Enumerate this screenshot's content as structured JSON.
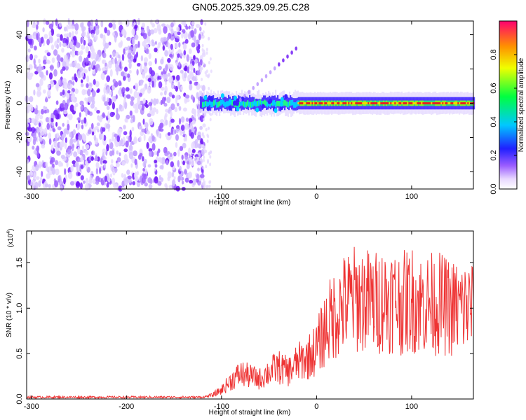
{
  "title": "GN05.2025.329.09.25.C28",
  "chart_data": [
    {
      "type": "heatmap",
      "xlabel": "Height of straight line (km)",
      "ylabel": "Frequency (Hz)",
      "xlim": [
        -305,
        165
      ],
      "ylim": [
        -50,
        48
      ],
      "xticks": [
        -300,
        -200,
        -100,
        0,
        100
      ],
      "yticks": [
        -40,
        -20,
        0,
        20,
        40
      ],
      "noise_region": [
        -305,
        -118
      ],
      "signal_band": {
        "x_start": -125,
        "x_end": 165,
        "frequency_center": 0,
        "frequency_halfwidth": 4
      },
      "colorbar": {
        "label": "Normalized spectral amplitude",
        "range": [
          0.0,
          1.0
        ],
        "ticks": [
          "0.0",
          "0.2",
          "0.4",
          "0.6",
          "0.8"
        ],
        "tick_values": [
          0.0,
          0.2,
          0.4,
          0.6,
          0.8
        ]
      },
      "grid": false
    },
    {
      "type": "line",
      "xlabel": "Height of straight line (km)",
      "ylabel": "SNR (10 * v/v)",
      "y_multiplier": "(x10",
      "y_multiplier_exp": "4",
      "y_multiplier_close": ")",
      "xlim": [
        -305,
        165
      ],
      "ylim": [
        0,
        1.85
      ],
      "xticks": [
        -300,
        -200,
        -100,
        0,
        100
      ],
      "yticks": [
        "0.0",
        "0.5",
        "1.0",
        "1.5"
      ],
      "ytick_values": [
        0.0,
        0.5,
        1.0,
        1.5
      ],
      "color": "#ee3333",
      "series": [
        {
          "x": [
            -305,
            -260,
            -200,
            -150,
            -120,
            -110,
            -100,
            -90,
            -80,
            -70,
            -60,
            -50,
            -40,
            -30,
            -20,
            -10,
            0,
            10,
            20,
            30,
            40,
            50,
            60,
            70,
            80,
            90,
            100,
            110,
            120,
            130,
            140,
            150,
            165
          ],
          "values": [
            0.02,
            0.02,
            0.02,
            0.02,
            0.02,
            0.04,
            0.1,
            0.2,
            0.28,
            0.25,
            0.22,
            0.3,
            0.35,
            0.3,
            0.4,
            0.45,
            0.55,
            0.8,
            0.95,
            1.05,
            1.1,
            1.1,
            1.05,
            1.1,
            1.1,
            1.05,
            1.1,
            1.05,
            1.05,
            1.05,
            1.0,
            1.0,
            1.0
          ]
        }
      ]
    }
  ]
}
